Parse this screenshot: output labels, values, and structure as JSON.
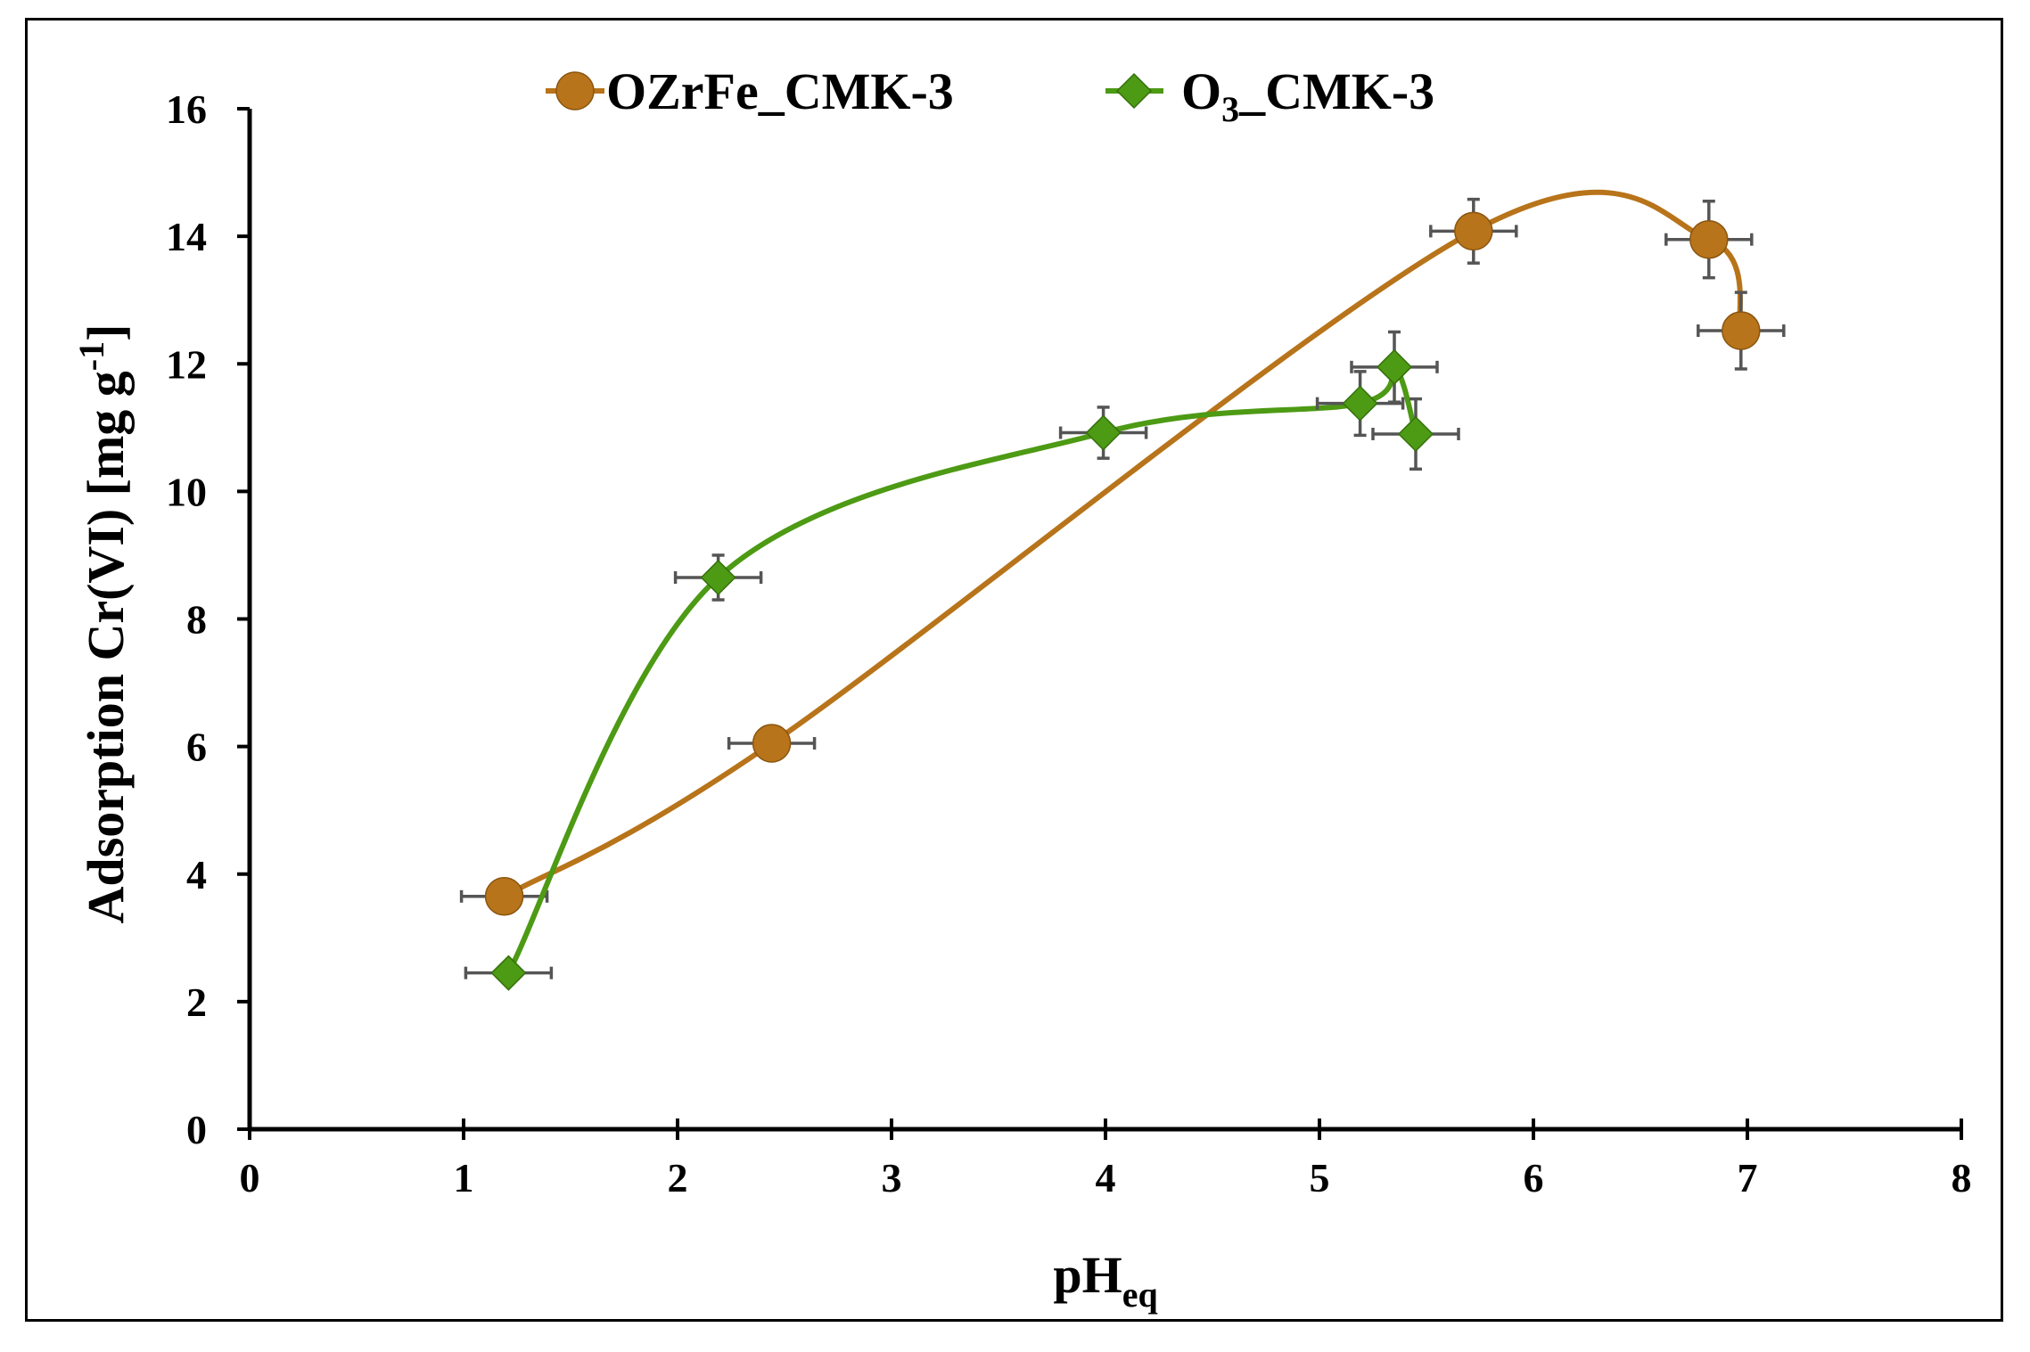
{
  "chart_data": {
    "type": "scatter",
    "xlabel": {
      "main": "pH",
      "sub": "eq"
    },
    "ylabel": {
      "main": "Adsorption  Cr(VI) [mg g",
      "sup": "-1",
      "tail": "]"
    },
    "xlim": [
      0,
      8
    ],
    "ylim": [
      0,
      16
    ],
    "x_ticks": [
      0,
      1,
      2,
      3,
      4,
      5,
      6,
      7,
      8
    ],
    "y_ticks": [
      0,
      2,
      4,
      6,
      8,
      10,
      12,
      14,
      16
    ],
    "grid": false,
    "legend_position": "top-center",
    "series": [
      {
        "name": "OZrFe_CMK-3",
        "name_parts": {
          "main": "OZrFe_CMK-3"
        },
        "marker": "circle",
        "color": "#b8741a",
        "line": "smooth",
        "x": [
          1.19,
          2.44,
          5.72,
          6.82,
          6.97
        ],
        "y": [
          3.65,
          6.05,
          14.08,
          13.95,
          12.52
        ],
        "x_err": [
          0.2,
          0.2,
          0.2,
          0.2,
          0.2
        ],
        "y_err": [
          0.0,
          0.0,
          0.5,
          0.6,
          0.6
        ]
      },
      {
        "name": "O3_CMK-3",
        "name_parts": {
          "pre": "O",
          "sub": "3",
          "post": "_CMK-3"
        },
        "marker": "diamond",
        "color": "#4d9a14",
        "line": "smooth",
        "x": [
          1.21,
          2.19,
          3.99,
          5.19,
          5.35,
          5.45
        ],
        "y": [
          2.45,
          8.65,
          10.92,
          11.38,
          11.95,
          10.9
        ],
        "x_err": [
          0.2,
          0.2,
          0.2,
          0.2,
          0.2,
          0.2
        ],
        "y_err": [
          0.0,
          0.35,
          0.4,
          0.5,
          0.55,
          0.55
        ]
      }
    ]
  }
}
